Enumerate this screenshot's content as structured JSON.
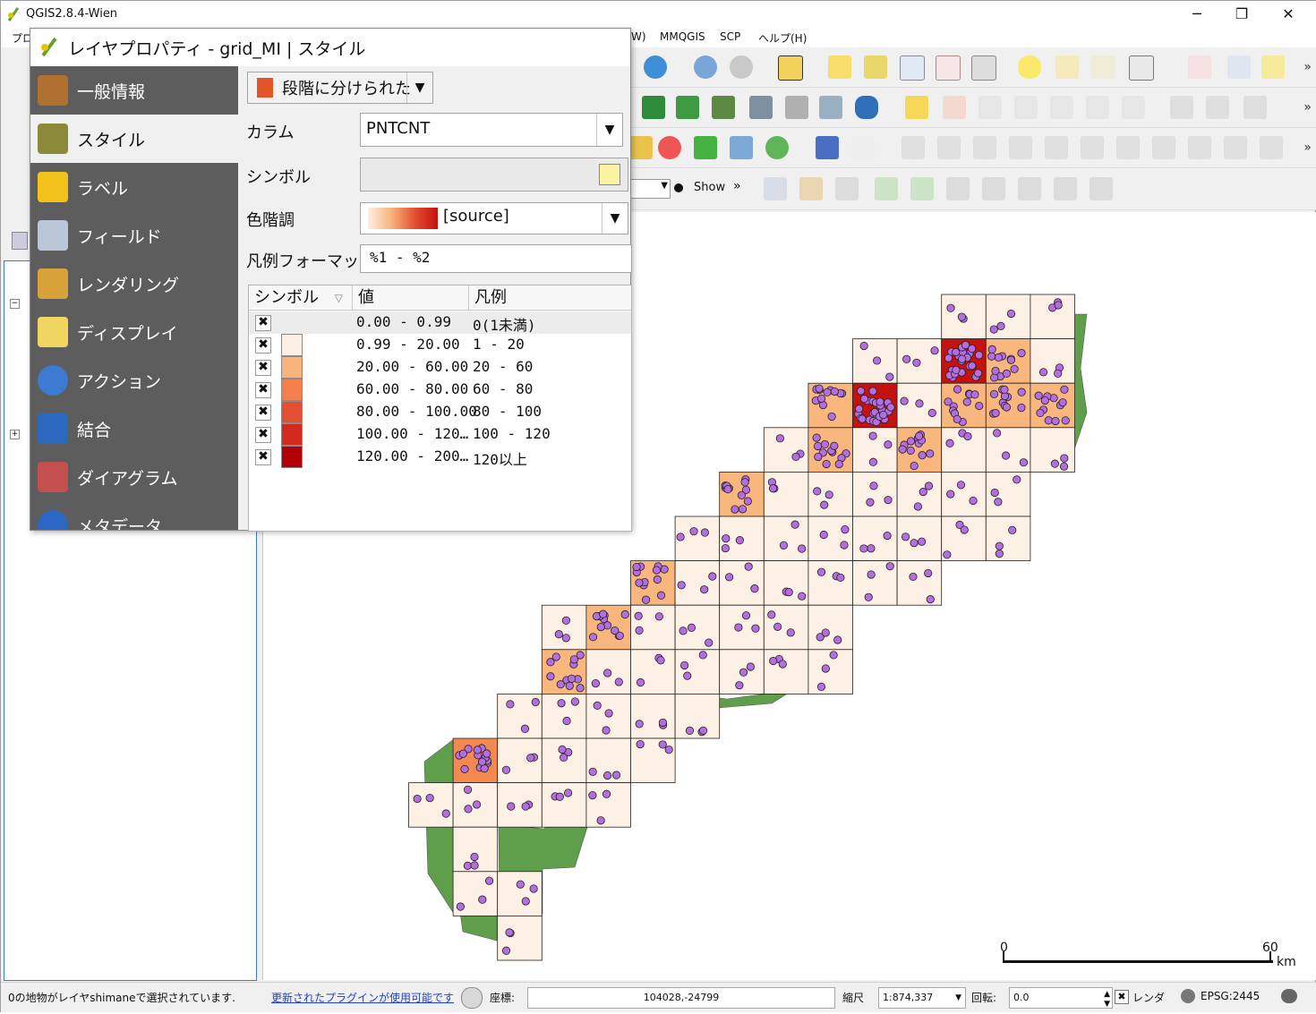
{
  "window": {
    "title": "QGIS2.8.4-Wien",
    "minimize": "─",
    "restore": "❐",
    "close": "✕"
  },
  "menubar": {
    "left_fragment": "プロ",
    "items": [
      "W)",
      "MMQGIS",
      "SCP",
      "ヘルプ(H)"
    ]
  },
  "toolbar": {
    "show_label": "Show",
    "more": "»"
  },
  "dialog": {
    "title": "レイヤプロパティ - grid_MI | スタイル",
    "sidebar": [
      {
        "label": "一般情報",
        "icon": "tools-icon"
      },
      {
        "label": "スタイル",
        "icon": "paintbrush-icon",
        "selected": true
      },
      {
        "label": "ラベル",
        "icon": "abc-label-icon"
      },
      {
        "label": "フィールド",
        "icon": "table-icon"
      },
      {
        "label": "レンダリング",
        "icon": "brush-icon"
      },
      {
        "label": "ディスプレイ",
        "icon": "speech-bubble-icon"
      },
      {
        "label": "アクション",
        "icon": "gear-action-icon"
      },
      {
        "label": "結合",
        "icon": "join-arrow-icon"
      },
      {
        "label": "ダイアグラム",
        "icon": "diagram-icon"
      },
      {
        "label": "メタデータ",
        "icon": "info-icon"
      }
    ],
    "renderer": "段階に分けられた",
    "column_label": "カラム",
    "column_value": "PNTCNT",
    "symbol_label": "シンボル",
    "symbol_color": "#fdf3a0",
    "ramp_label": "色階調",
    "ramp_value": "[source]",
    "legend_format_label": "凡例フォーマット",
    "legend_format_value": "%1 - %2",
    "table": {
      "headers": [
        "シンボル",
        "値",
        "凡例"
      ],
      "rows": [
        {
          "checked": "✖",
          "color": "",
          "value": "0.00 - 0.99",
          "legend": "0(1未満)"
        },
        {
          "checked": "✖",
          "color": "#fdefe3",
          "value": "0.99 - 20.00",
          "legend": "1 - 20"
        },
        {
          "checked": "✖",
          "color": "#f9b47c",
          "value": "20.00 - 60.00",
          "legend": "20 - 60"
        },
        {
          "checked": "✖",
          "color": "#f47f4c",
          "value": "60.00 - 80.00",
          "legend": "60 - 80"
        },
        {
          "checked": "✖",
          "color": "#e44f33",
          "value": "80.00 - 100.00",
          "legend": "80 - 100"
        },
        {
          "checked": "✖",
          "color": "#d32a1e",
          "value": "100.00 - 120…",
          "legend": "100 - 120"
        },
        {
          "checked": "✖",
          "color": "#b30008",
          "value": "120.00 - 200…",
          "legend": "120以上"
        }
      ]
    }
  },
  "map": {
    "scalebar_start": "0",
    "scalebar_end": "60",
    "scalebar_unit": "km",
    "colors": {
      "land": "#5f9e4a",
      "class1": "#fdf0e4",
      "class2": "#f9b77e",
      "class3": "#f4894f",
      "class6": "#c4120e",
      "point": "#b46ee0"
    }
  },
  "statusbar": {
    "message": "0の地物がレイヤshimaneで選択されています.",
    "plugin_link": "更新されたプラグインが使用可能です",
    "coord_label": "座標:",
    "coord_value": "104028,-24799",
    "scale_label": "縮尺",
    "scale_value": "1:874,337",
    "rotation_label": "回転:",
    "rotation_value": "0.0",
    "render_check": "✖",
    "render_label": "レンダ",
    "crs": "EPSG:2445"
  }
}
